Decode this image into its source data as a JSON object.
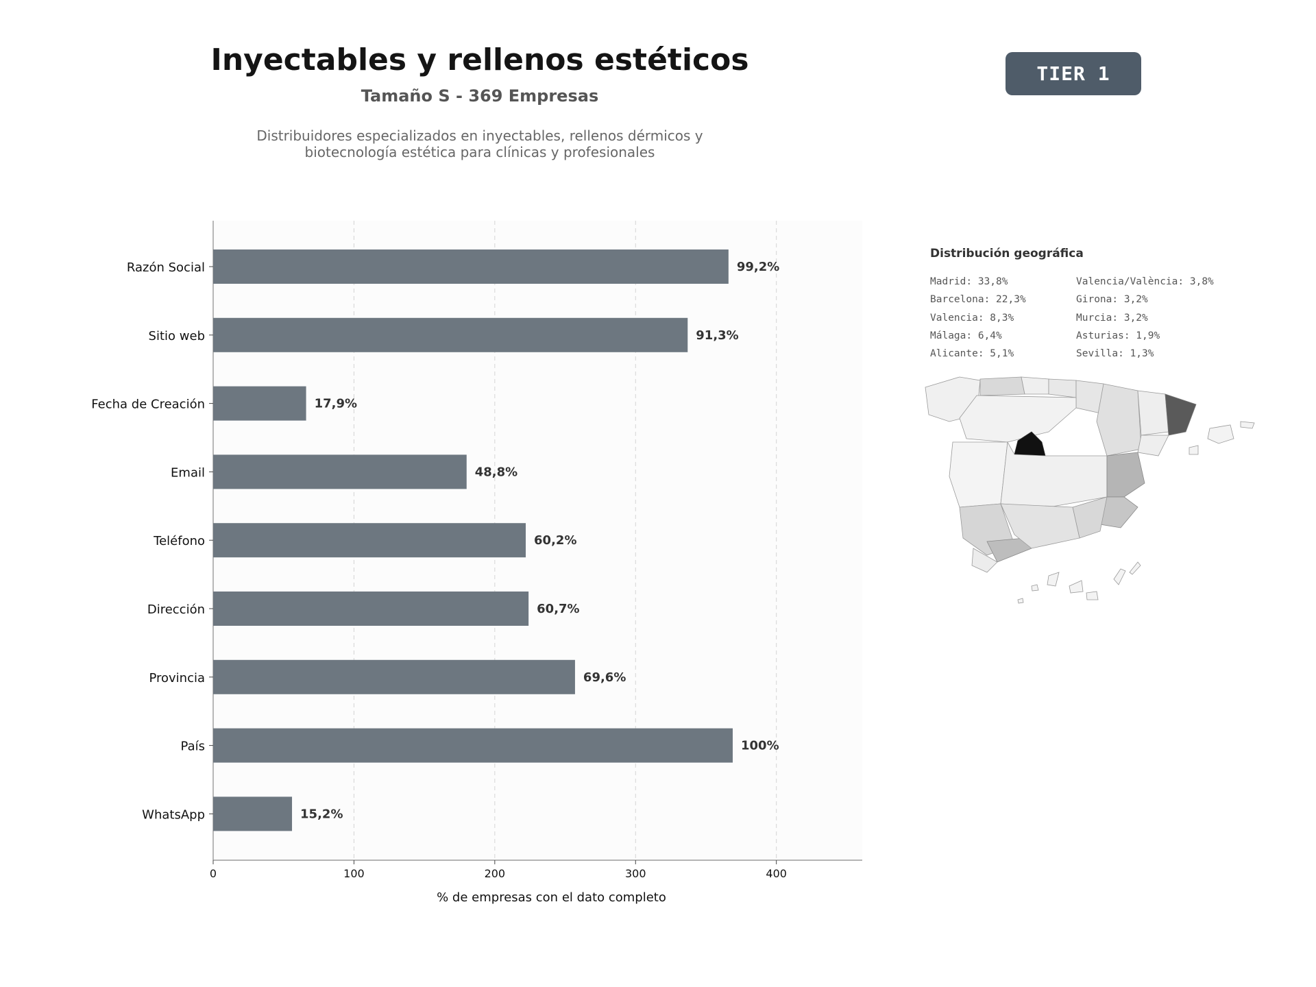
{
  "header": {
    "title": "Inyectables y rellenos estéticos",
    "subtitle": "Tamaño S - 369 Empresas",
    "description_line1": "Distribuidores especializados en inyectables, rellenos dérmicos y",
    "description_line2": "biotecnología estética para clínicas y profesionales"
  },
  "badge": {
    "label": "TIER 1"
  },
  "chart_data": {
    "type": "bar",
    "orientation": "horizontal",
    "categories": [
      "Razón Social",
      "Sitio web",
      "Fecha de Creación",
      "Email",
      "Teléfono",
      "Dirección",
      "Provincia",
      "País",
      "WhatsApp"
    ],
    "values": [
      366,
      337,
      66,
      180,
      222,
      224,
      257,
      369,
      56
    ],
    "data_labels": [
      "99,2%",
      "91,3%",
      "17,9%",
      "48,8%",
      "60,2%",
      "60,7%",
      "69,6%",
      "100%",
      "15,2%"
    ],
    "xlabel": "% de empresas con el dato completo",
    "xlim": [
      0,
      461
    ],
    "xticks": [
      0,
      100,
      200,
      300,
      400
    ],
    "grid": "vertical dashed",
    "bar_color": "#6d7780"
  },
  "geo": {
    "title": "Distribución geográfica",
    "items_left": [
      "Madrid: 33,8%",
      "Barcelona: 22,3%",
      "Valencia: 8,3%",
      "Málaga: 6,4%",
      "Alicante: 5,1%"
    ],
    "items_right": [
      "Valencia/València: 3,8%",
      "Girona: 3,2%",
      "Murcia: 3,2%",
      "Asturias: 1,9%",
      "Sevilla: 1,3%"
    ]
  }
}
